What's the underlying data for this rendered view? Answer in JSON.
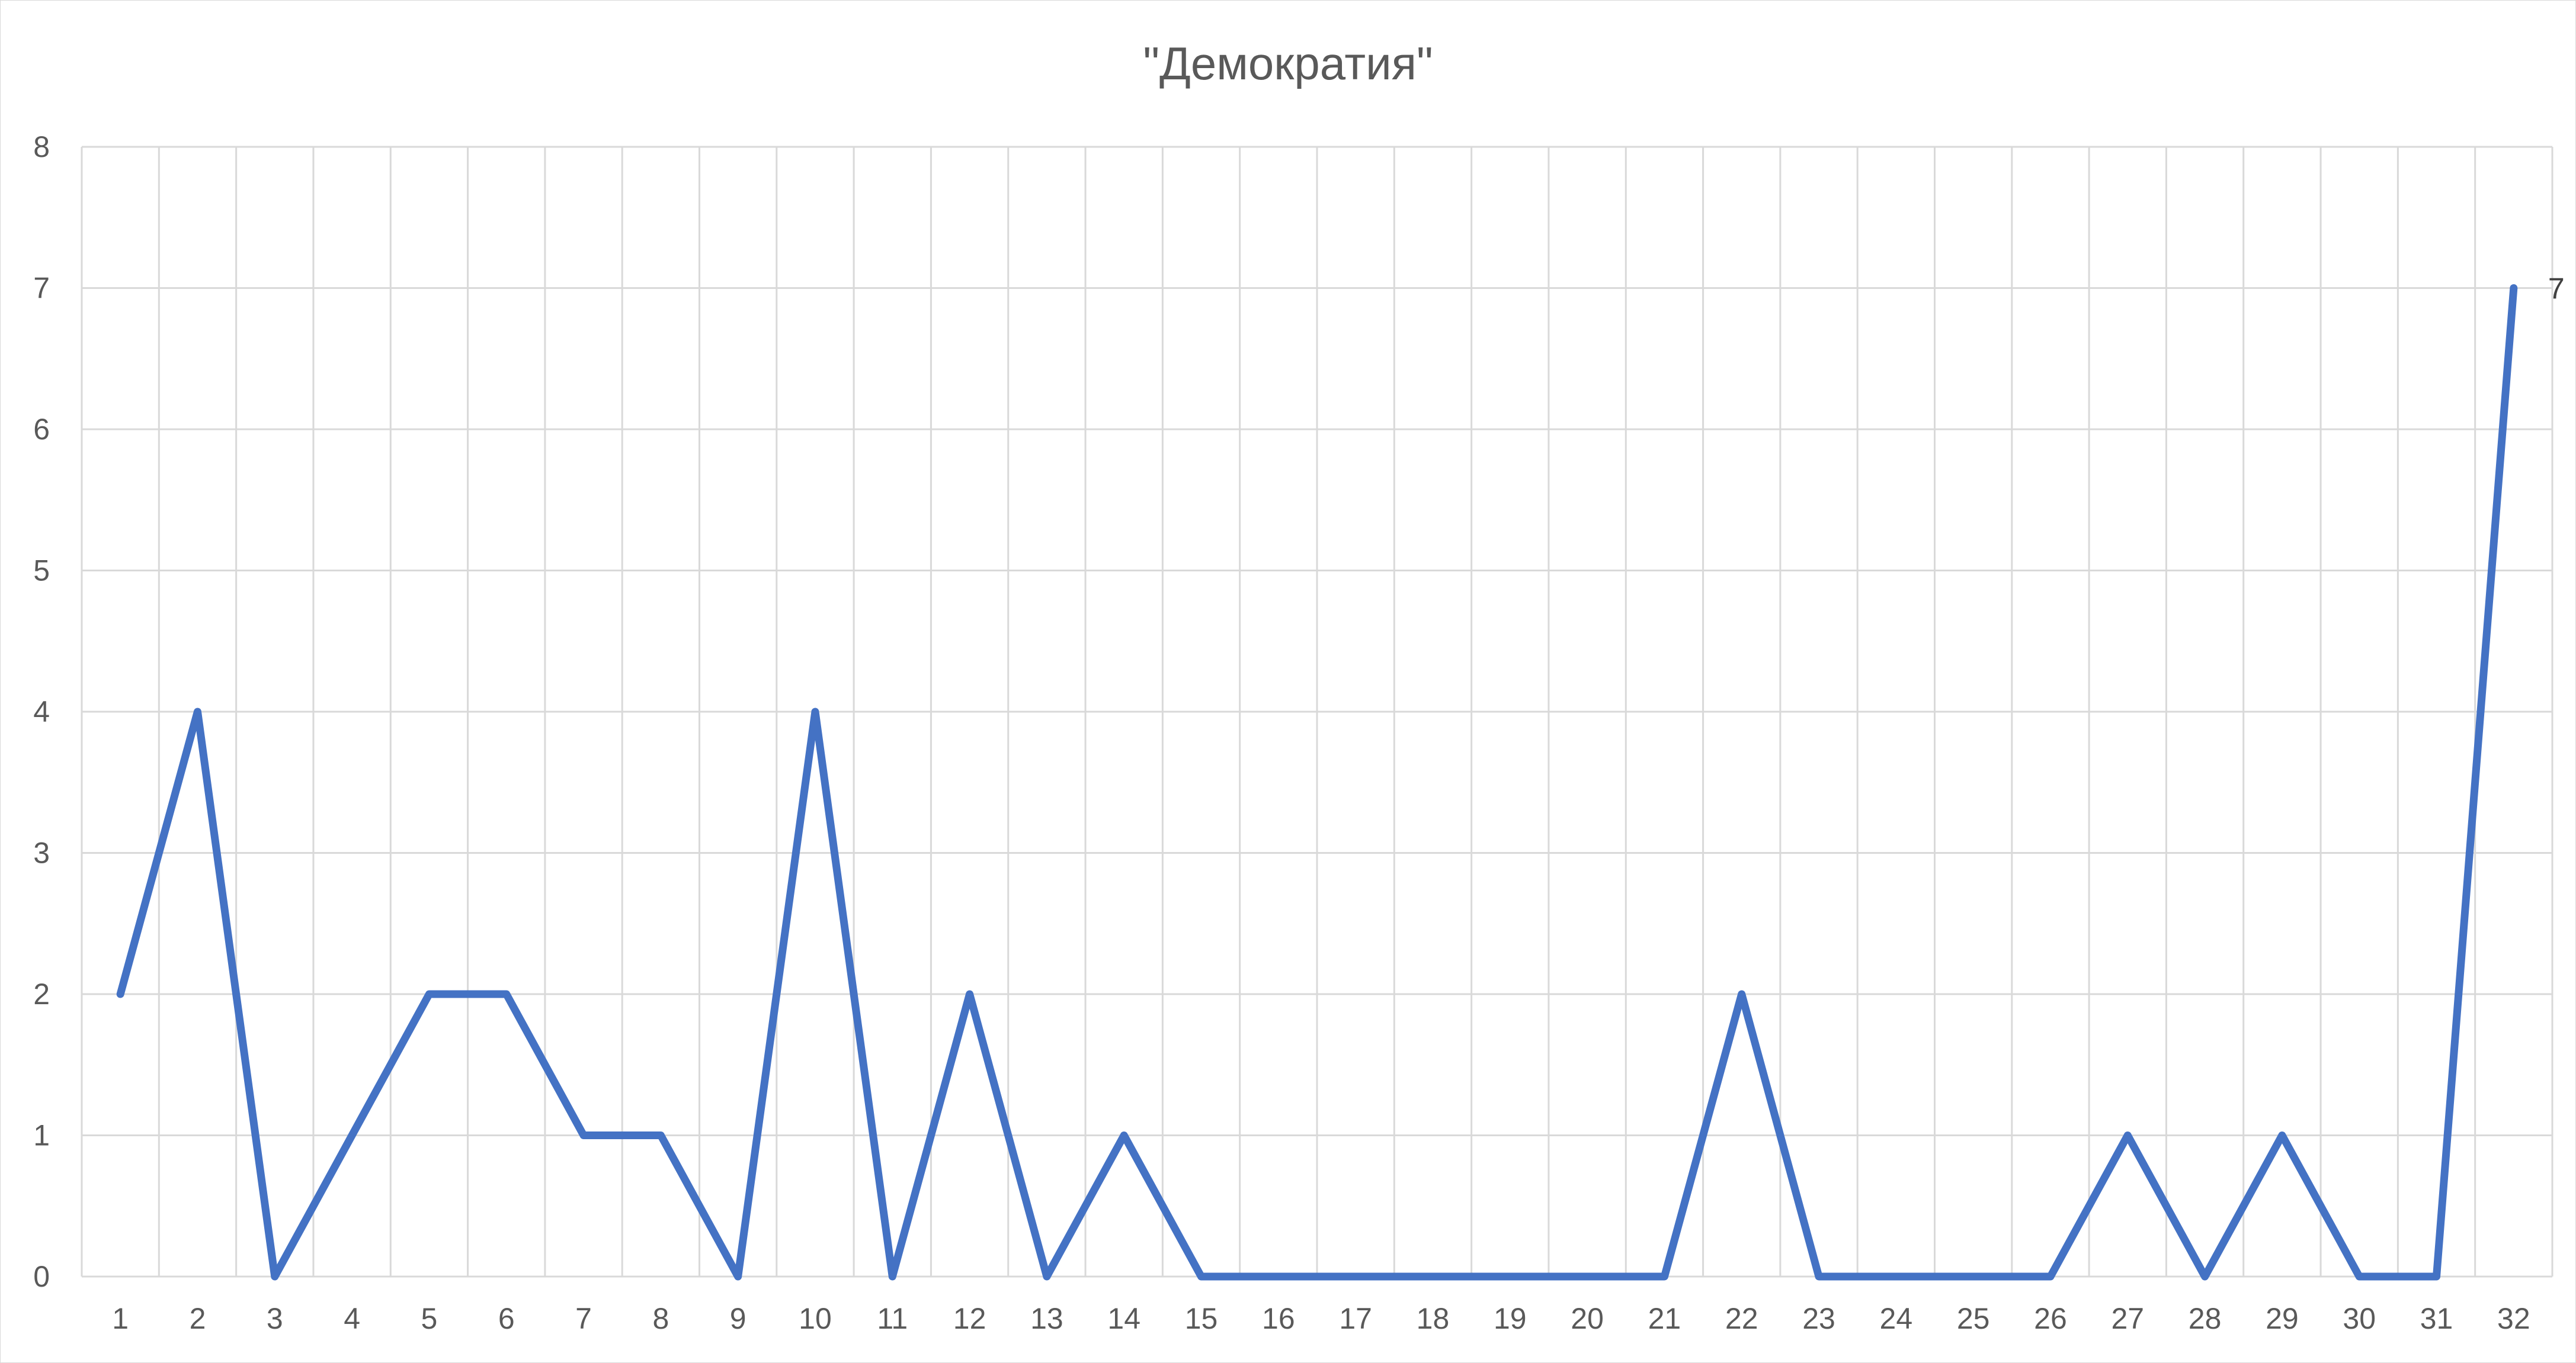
{
  "chart_data": {
    "type": "line",
    "title": "\"Демократия\"",
    "xlabel": "",
    "ylabel": "",
    "categories": [
      "1",
      "2",
      "3",
      "4",
      "5",
      "6",
      "7",
      "8",
      "9",
      "10",
      "11",
      "12",
      "13",
      "14",
      "15",
      "16",
      "17",
      "18",
      "19",
      "20",
      "21",
      "22",
      "23",
      "24",
      "25",
      "26",
      "27",
      "28",
      "29",
      "30",
      "31",
      "32"
    ],
    "series": [
      {
        "values": [
          2,
          4,
          0,
          1,
          2,
          2,
          1,
          1,
          0,
          4,
          0,
          2,
          0,
          1,
          0,
          0,
          0,
          0,
          0,
          0,
          0,
          2,
          0,
          0,
          0,
          0,
          1,
          0,
          1,
          0,
          0,
          7
        ]
      }
    ],
    "ylim": [
      0,
      8
    ],
    "yticks": [
      "0",
      "1",
      "2",
      "3",
      "4",
      "5",
      "6",
      "7",
      "8"
    ],
    "grid": true,
    "legend": "none",
    "data_labels": [
      {
        "index": 31,
        "text": "7"
      }
    ],
    "colors": {
      "line": "#4472C4",
      "grid": "#d9d9d9",
      "text": "#595959",
      "data_label": "#404040"
    }
  }
}
